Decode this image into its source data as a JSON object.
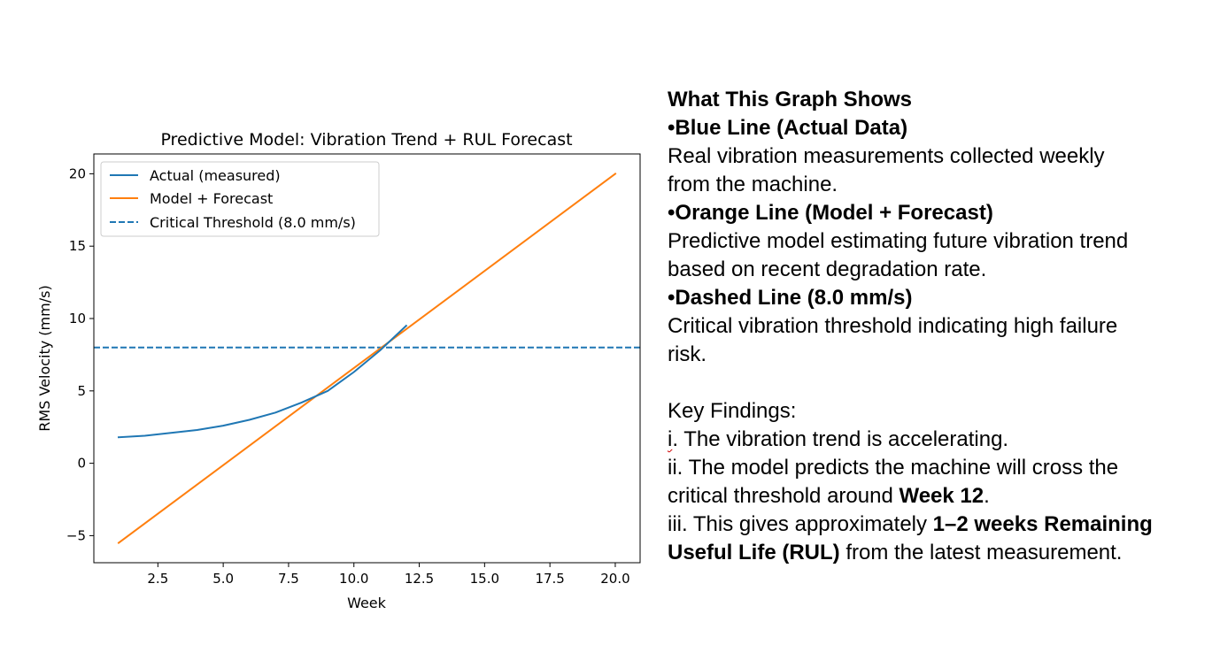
{
  "chart_data": {
    "type": "line",
    "title": "Predictive Model: Vibration Trend + RUL Forecast",
    "xlabel": "Week",
    "ylabel": "RMS Velocity (mm/s)",
    "xlim": [
      0.05,
      20.95
    ],
    "ylim": [
      -6.87,
      21.37
    ],
    "xticks": [
      "2.5",
      "5.0",
      "7.5",
      "10.0",
      "12.5",
      "15.0",
      "17.5",
      "20.0"
    ],
    "xtick_values": [
      2.5,
      5.0,
      7.5,
      10.0,
      12.5,
      15.0,
      17.5,
      20.0
    ],
    "yticks": [
      "−5",
      "0",
      "5",
      "10",
      "15",
      "20"
    ],
    "ytick_values": [
      -5,
      0,
      5,
      10,
      15,
      20
    ],
    "grid": false,
    "legend_position": "top-left",
    "series": [
      {
        "name": "Actual (measured)",
        "color": "#1f77b4",
        "style": "solid",
        "x": [
          1,
          2,
          3,
          4,
          5,
          6,
          7,
          8,
          9,
          10,
          11,
          12
        ],
        "y": [
          1.8,
          1.9,
          2.1,
          2.3,
          2.6,
          3.0,
          3.5,
          4.2,
          5.0,
          6.3,
          7.8,
          9.5
        ]
      },
      {
        "name": "Model + Forecast",
        "color": "#ff7f0e",
        "style": "solid",
        "x": [
          1,
          20
        ],
        "y": [
          -5.5,
          20.0
        ]
      },
      {
        "name": "Critical Threshold (8.0 mm/s)",
        "color": "#1f77b4",
        "style": "dashed",
        "y_constant": 8.0
      }
    ]
  },
  "explanation": {
    "heading": "What This Graph Shows",
    "blue_title": "•Blue Line (Actual Data)",
    "blue_desc_1": "Real vibration measurements collected weekly",
    "blue_desc_2": "from the machine.",
    "orange_title": "•Orange Line (Model + Forecast)",
    "orange_desc_1": "Predictive model estimating future vibration trend",
    "orange_desc_2": "based on recent degradation rate.",
    "dashed_title": "•Dashed Line (8.0 mm/s)",
    "dashed_desc_1": "Critical vibration threshold indicating high failure",
    "dashed_desc_2": "risk.",
    "findings_heading": "Key Findings:",
    "finding_1_num": "i",
    "finding_1_text": ". The vibration trend is accelerating.",
    "finding_2_line1": "ii. The model predicts the machine will cross the",
    "finding_2_line2_pre": "critical threshold around ",
    "finding_2_line2_bold": "Week 12",
    "finding_2_line2_post": ".",
    "finding_3_pre": "iii. This gives approximately ",
    "finding_3_bold_1": "1–2 weeks Remaining",
    "finding_3_bold_2": "Useful Life (RUL)",
    "finding_3_post": " from the latest measurement."
  }
}
